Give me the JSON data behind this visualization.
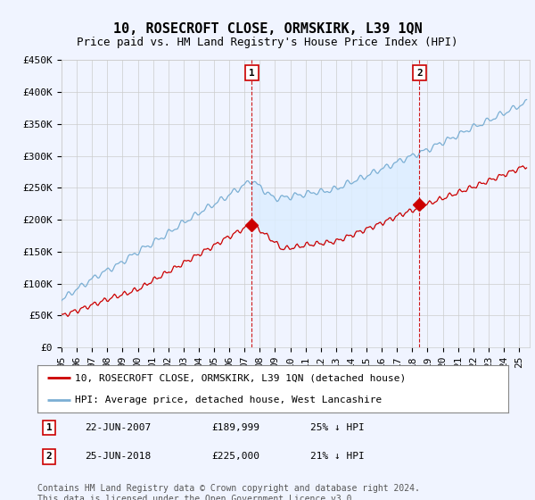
{
  "title": "10, ROSECROFT CLOSE, ORMSKIRK, L39 1QN",
  "subtitle": "Price paid vs. HM Land Registry's House Price Index (HPI)",
  "ylim": [
    0,
    450000
  ],
  "yticks": [
    0,
    50000,
    100000,
    150000,
    200000,
    250000,
    300000,
    350000,
    400000,
    450000
  ],
  "ytick_labels": [
    "£0",
    "£50K",
    "£100K",
    "£150K",
    "£200K",
    "£250K",
    "£300K",
    "£350K",
    "£400K",
    "£450K"
  ],
  "xlim_start": 1995.0,
  "xlim_end": 2025.7,
  "purchases": [
    {
      "date_num": 2007.47,
      "price": 189999,
      "label": "1",
      "hpi_pct": "25% ↓ HPI",
      "date_str": "22-JUN-2007",
      "price_str": "£189,999"
    },
    {
      "date_num": 2018.47,
      "price": 225000,
      "label": "2",
      "hpi_pct": "21% ↓ HPI",
      "date_str": "25-JUN-2018",
      "price_str": "£225,000"
    }
  ],
  "red_line_color": "#cc0000",
  "blue_line_color": "#7bafd4",
  "blue_fill_color": "#ddeeff",
  "background_color": "#f0f4ff",
  "grid_color": "#cccccc",
  "legend_label_red": "10, ROSECROFT CLOSE, ORMSKIRK, L39 1QN (detached house)",
  "legend_label_blue": "HPI: Average price, detached house, West Lancashire",
  "footer": "Contains HM Land Registry data © Crown copyright and database right 2024.\nThis data is licensed under the Open Government Licence v3.0.",
  "title_fontsize": 11,
  "subtitle_fontsize": 9,
  "tick_fontsize": 8,
  "legend_fontsize": 8,
  "footer_fontsize": 7
}
